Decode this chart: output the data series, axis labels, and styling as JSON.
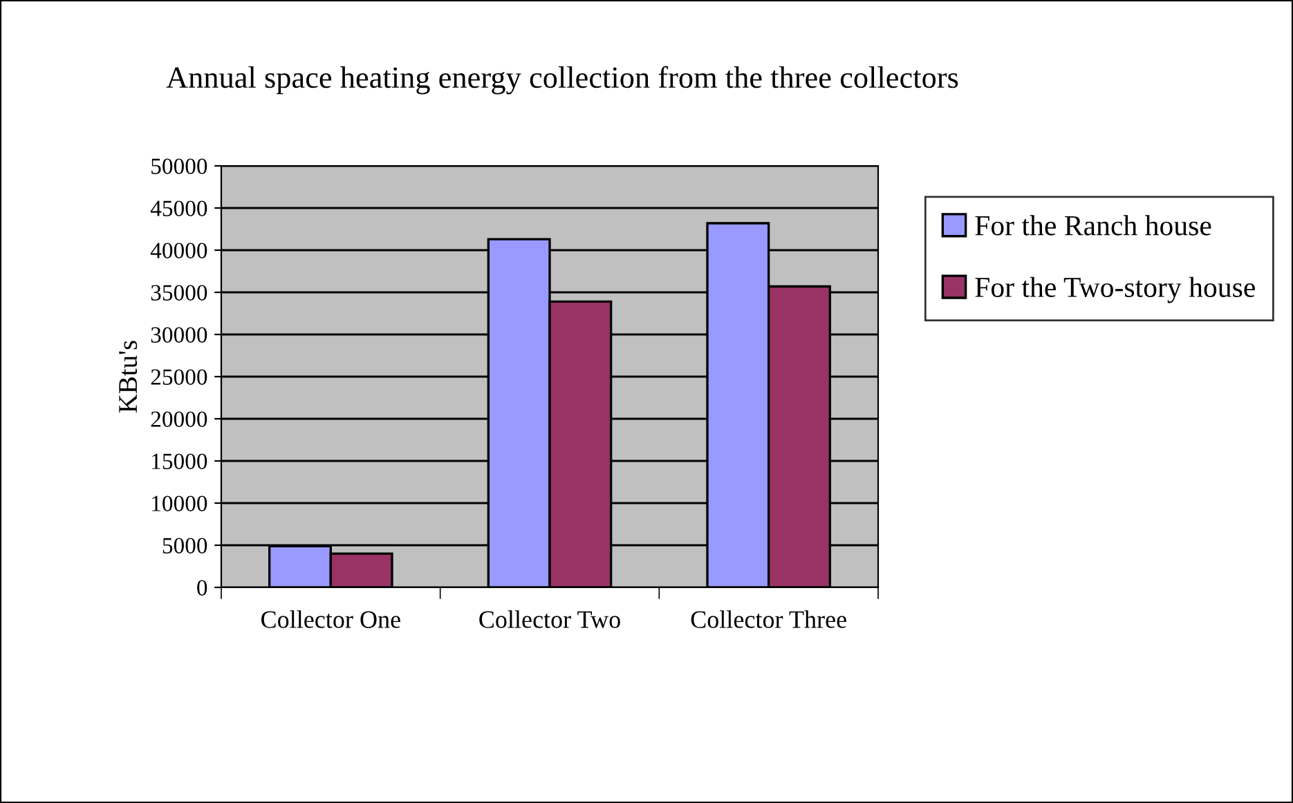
{
  "chart_data": {
    "type": "bar",
    "title": "Annual space heating energy collection from the three collectors",
    "ylabel": "KBtu's",
    "categories": [
      "Collector One",
      "Collector Two",
      "Collector Three"
    ],
    "series": [
      {
        "name": "For the Ranch house",
        "color": "#9999ff",
        "values": [
          4900,
          41300,
          43200
        ]
      },
      {
        "name": "For the Two-story house",
        "color": "#993366",
        "values": [
          4000,
          33900,
          35700
        ]
      }
    ],
    "ylim": [
      0,
      50000
    ],
    "yticks": [
      0,
      5000,
      10000,
      15000,
      20000,
      25000,
      30000,
      35000,
      40000,
      45000,
      50000
    ],
    "grid": "y",
    "legend": "right"
  }
}
